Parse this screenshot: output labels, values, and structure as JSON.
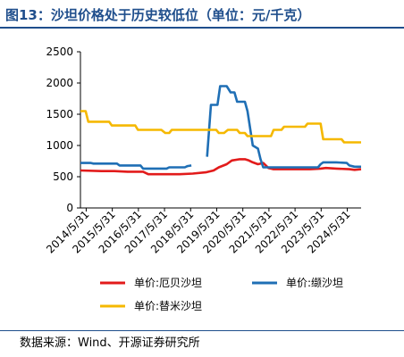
{
  "title": "图13：沙坦价格处于历史较低位（单位：元/千克）",
  "source": "数据来源：Wind、开源证券研究所",
  "chart_data": {
    "type": "line",
    "y_ticks": [
      "0",
      "500",
      "1000",
      "1500",
      "2000",
      "2500"
    ],
    "ylim": [
      0,
      2500
    ],
    "x_ticks": [
      "2014/5/31",
      "2015/5/31",
      "2016/5/31",
      "2017/5/31",
      "2018/5/31",
      "2019/5/31",
      "2020/5/31",
      "2021/5/31",
      "2022/5/31",
      "2023/5/31",
      "2024/5/31"
    ],
    "xlim": [
      2014.2,
      2024.95
    ],
    "series": [
      {
        "name": "单价:厄贝沙坦",
        "color": "#e21b1b",
        "points": [
          [
            2014.2,
            600
          ],
          [
            2015.0,
            590
          ],
          [
            2015.5,
            590
          ],
          [
            2016.0,
            580
          ],
          [
            2016.6,
            580
          ],
          [
            2016.8,
            540
          ],
          [
            2017.2,
            540
          ],
          [
            2018.0,
            540
          ],
          [
            2018.5,
            550
          ],
          [
            2019.0,
            570
          ],
          [
            2019.3,
            600
          ],
          [
            2019.5,
            650
          ],
          [
            2019.8,
            700
          ],
          [
            2020.0,
            760
          ],
          [
            2020.3,
            780
          ],
          [
            2020.5,
            780
          ],
          [
            2020.65,
            760
          ],
          [
            2020.8,
            730
          ],
          [
            2021.0,
            700
          ],
          [
            2021.2,
            720
          ],
          [
            2021.4,
            640
          ],
          [
            2021.6,
            620
          ],
          [
            2021.9,
            620
          ],
          [
            2022.5,
            620
          ],
          [
            2023.0,
            620
          ],
          [
            2023.4,
            630
          ],
          [
            2023.6,
            640
          ],
          [
            2024.0,
            630
          ],
          [
            2024.5,
            620
          ],
          [
            2024.7,
            610
          ],
          [
            2024.95,
            620
          ]
        ]
      },
      {
        "name": "单价:缬沙坦",
        "color": "#1f6fb5",
        "points": [
          [
            2014.2,
            720
          ],
          [
            2014.6,
            720
          ],
          [
            2014.7,
            710
          ],
          [
            2015.0,
            710
          ],
          [
            2015.6,
            710
          ],
          [
            2015.7,
            680
          ],
          [
            2016.5,
            680
          ],
          [
            2016.6,
            630
          ],
          [
            2017.5,
            630
          ],
          [
            2017.6,
            650
          ],
          [
            2018.2,
            650
          ],
          [
            2018.3,
            670
          ],
          [
            2018.45,
            680
          ],
          [
            null,
            null
          ],
          [
            2019.05,
            820
          ],
          [
            2019.2,
            1650
          ],
          [
            2019.45,
            1650
          ],
          [
            2019.55,
            1950
          ],
          [
            2019.8,
            1950
          ],
          [
            2019.95,
            1850
          ],
          [
            2020.1,
            1850
          ],
          [
            2020.2,
            1700
          ],
          [
            2020.5,
            1700
          ],
          [
            2020.6,
            1550
          ],
          [
            2020.8,
            1000
          ],
          [
            2021.0,
            950
          ],
          [
            2021.1,
            780
          ],
          [
            2021.2,
            650
          ],
          [
            2021.5,
            650
          ],
          [
            2022.0,
            650
          ],
          [
            2022.5,
            650
          ],
          [
            2023.0,
            650
          ],
          [
            2023.3,
            650
          ],
          [
            2023.4,
            700
          ],
          [
            2023.5,
            730
          ],
          [
            2024.0,
            730
          ],
          [
            2024.4,
            720
          ],
          [
            2024.5,
            680
          ],
          [
            2024.7,
            660
          ],
          [
            2024.95,
            660
          ]
        ]
      },
      {
        "name": "单价:替米沙坦",
        "color": "#f5b800",
        "points": [
          [
            2014.2,
            1550
          ],
          [
            2014.4,
            1550
          ],
          [
            2014.5,
            1380
          ],
          [
            2015.0,
            1380
          ],
          [
            2015.3,
            1380
          ],
          [
            2015.4,
            1320
          ],
          [
            2016.0,
            1320
          ],
          [
            2016.3,
            1320
          ],
          [
            2016.4,
            1250
          ],
          [
            2017.0,
            1250
          ],
          [
            2017.3,
            1250
          ],
          [
            2017.45,
            1200
          ],
          [
            2017.6,
            1200
          ],
          [
            2017.7,
            1250
          ],
          [
            2018.0,
            1250
          ],
          [
            2019.0,
            1250
          ],
          [
            2019.4,
            1250
          ],
          [
            2019.5,
            1200
          ],
          [
            2019.7,
            1200
          ],
          [
            2019.85,
            1250
          ],
          [
            2020.2,
            1250
          ],
          [
            2020.3,
            1200
          ],
          [
            2020.5,
            1200
          ],
          [
            2020.6,
            1150
          ],
          [
            2021.0,
            1150
          ],
          [
            2021.5,
            1150
          ],
          [
            2021.6,
            1250
          ],
          [
            2021.9,
            1250
          ],
          [
            2022.0,
            1300
          ],
          [
            2022.5,
            1300
          ],
          [
            2022.8,
            1300
          ],
          [
            2022.9,
            1350
          ],
          [
            2023.4,
            1350
          ],
          [
            2023.5,
            1100
          ],
          [
            2024.0,
            1100
          ],
          [
            2024.2,
            1100
          ],
          [
            2024.3,
            1050
          ],
          [
            2024.6,
            1050
          ],
          [
            2024.95,
            1050
          ]
        ]
      }
    ],
    "legend": "bottom"
  }
}
